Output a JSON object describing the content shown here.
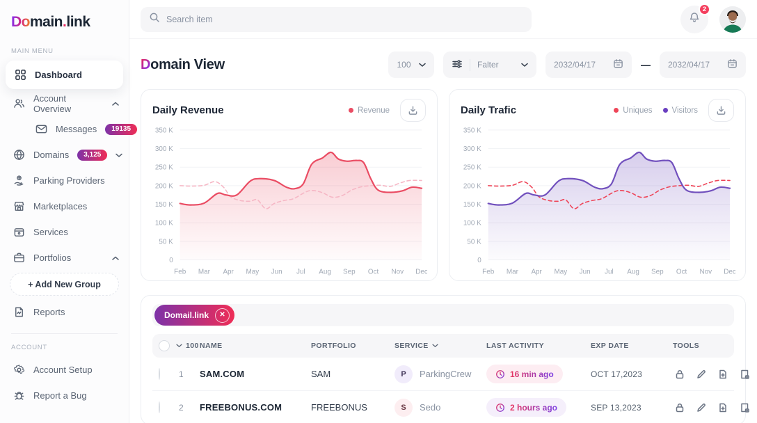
{
  "brand": {
    "logo_accent": "Do",
    "logo_part1": "main",
    "logo_dot": ".",
    "logo_part2": "link"
  },
  "topbar": {
    "search_placeholder": "Search item",
    "notification_count": "2"
  },
  "sidebar": {
    "section_main": "MAIN MENU",
    "section_account": "ACCOUNT",
    "items": {
      "dashboard": "Dashboard",
      "account_overview": "Account Overview",
      "messages": "Messages",
      "messages_badge": "19135",
      "domains": "Domains",
      "domains_badge": "3,125",
      "parking_providers": "Parking Providers",
      "marketplaces": "Marketplaces",
      "services": "Services",
      "portfolios": "Portfolios",
      "add_new_group": "+ Add New Group",
      "reports": "Reports",
      "account_setup": "Account Setup",
      "report_a_bug": "Report a Bug"
    }
  },
  "page": {
    "title_accent": "D",
    "title_rest": "omain View",
    "page_size": "100",
    "filter_label": "Falter",
    "date_from": "2032/04/17",
    "date_separator": "—",
    "date_to": "2032/04/17"
  },
  "chart_data": [
    {
      "type": "line",
      "title": "Daily Revenue",
      "x_ticks": [
        "Feb",
        "Mar",
        "Apr",
        "May",
        "Jun",
        "Jul",
        "Aug",
        "Sep",
        "Oct",
        "Nov",
        "Dec"
      ],
      "x_range": [
        0,
        10
      ],
      "ylim": [
        0,
        350
      ],
      "y_unit": "K",
      "grid": true,
      "legend_position": "top-right",
      "y_ticks": [
        {
          "label": "350 K",
          "value": 350
        },
        {
          "label": "300 K",
          "value": 300
        },
        {
          "label": "250 K",
          "value": 250
        },
        {
          "label": "200 K",
          "value": 200
        },
        {
          "label": "150 K",
          "value": 150
        },
        {
          "label": "100 K",
          "value": 100
        },
        {
          "label": "50 K",
          "value": 50
        },
        {
          "label": "0",
          "value": 0
        }
      ],
      "legend": [
        {
          "label": "Revenue",
          "color": "#ea4c63"
        }
      ],
      "series": [
        {
          "name": "",
          "style": "dashed",
          "color": "#f6b7c5",
          "fill": false,
          "points": [
            [
              0,
              200
            ],
            [
              0.5,
              199
            ],
            [
              1,
              201
            ],
            [
              1.45,
              211
            ],
            [
              1.8,
              196
            ],
            [
              2.1,
              170
            ],
            [
              2.5,
              160
            ],
            [
              2.9,
              158
            ],
            [
              3.2,
              162
            ],
            [
              3.55,
              138
            ],
            [
              3.9,
              152
            ],
            [
              4.3,
              160
            ],
            [
              4.7,
              165
            ],
            [
              5.2,
              183
            ],
            [
              5.5,
              187
            ],
            [
              5.9,
              181
            ],
            [
              6.3,
              169
            ],
            [
              6.7,
              173
            ],
            [
              7.1,
              188
            ],
            [
              7.5,
              197
            ],
            [
              7.9,
              200
            ],
            [
              8.3,
              201
            ],
            [
              8.7,
              198
            ],
            [
              9.1,
              207
            ],
            [
              9.5,
              214
            ],
            [
              10,
              214
            ]
          ]
        },
        {
          "name": "Revenue",
          "style": "solid",
          "color": "#ea4c63",
          "fill": true,
          "points": [
            [
              0,
              152
            ],
            [
              0.45,
              148
            ],
            [
              1,
              153
            ],
            [
              1.55,
              179
            ],
            [
              1.9,
              175
            ],
            [
              2.35,
              175
            ],
            [
              2.9,
              212
            ],
            [
              3.3,
              219
            ],
            [
              3.9,
              214
            ],
            [
              4.4,
              196
            ],
            [
              4.75,
              192
            ],
            [
              5.1,
              205
            ],
            [
              5.45,
              258
            ],
            [
              5.9,
              275
            ],
            [
              6.25,
              290
            ],
            [
              6.55,
              272
            ],
            [
              6.9,
              266
            ],
            [
              7.3,
              268
            ],
            [
              7.6,
              262
            ],
            [
              7.9,
              218
            ],
            [
              8.2,
              188
            ],
            [
              8.7,
              182
            ],
            [
              9.2,
              186
            ],
            [
              9.6,
              196
            ],
            [
              10,
              193
            ]
          ]
        }
      ]
    },
    {
      "type": "line",
      "title": "Daily Trafic",
      "x_ticks": [
        "Feb",
        "Mar",
        "Apr",
        "May",
        "Jun",
        "Jul",
        "Aug",
        "Sep",
        "Oct",
        "Nov",
        "Dec"
      ],
      "x_range": [
        0,
        10
      ],
      "ylim": [
        0,
        350
      ],
      "y_unit": "K",
      "grid": true,
      "legend_position": "top-right",
      "y_ticks": [
        {
          "label": "350 K",
          "value": 350
        },
        {
          "label": "300 K",
          "value": 300
        },
        {
          "label": "250 K",
          "value": 250
        },
        {
          "label": "200 K",
          "value": 200
        },
        {
          "label": "150 K",
          "value": 150
        },
        {
          "label": "100 K",
          "value": 100
        },
        {
          "label": "50 K",
          "value": 50
        },
        {
          "label": "0",
          "value": 0
        }
      ],
      "legend": [
        {
          "label": "Uniques",
          "color": "#ee4558"
        },
        {
          "label": "Visitors",
          "color": "#6a3fc0"
        }
      ],
      "series": [
        {
          "name": "Uniques",
          "style": "dashed",
          "color": "#ee4558",
          "fill": false,
          "points": [
            [
              0,
              200
            ],
            [
              0.5,
              199
            ],
            [
              1,
              201
            ],
            [
              1.45,
              211
            ],
            [
              1.8,
              196
            ],
            [
              2.1,
              170
            ],
            [
              2.5,
              160
            ],
            [
              2.9,
              158
            ],
            [
              3.2,
              162
            ],
            [
              3.55,
              138
            ],
            [
              3.9,
              152
            ],
            [
              4.3,
              160
            ],
            [
              4.7,
              165
            ],
            [
              5.2,
              183
            ],
            [
              5.5,
              187
            ],
            [
              5.9,
              181
            ],
            [
              6.3,
              169
            ],
            [
              6.7,
              173
            ],
            [
              7.1,
              188
            ],
            [
              7.5,
              197
            ],
            [
              7.9,
              200
            ],
            [
              8.3,
              201
            ],
            [
              8.7,
              198
            ],
            [
              9.1,
              207
            ],
            [
              9.5,
              214
            ],
            [
              10,
              214
            ]
          ]
        },
        {
          "name": "Visitors",
          "style": "solid",
          "color": "#7150bd",
          "fill": true,
          "points": [
            [
              0,
              152
            ],
            [
              0.45,
              148
            ],
            [
              1,
              153
            ],
            [
              1.55,
              179
            ],
            [
              1.9,
              175
            ],
            [
              2.35,
              175
            ],
            [
              2.9,
              212
            ],
            [
              3.3,
              219
            ],
            [
              3.9,
              214
            ],
            [
              4.4,
              196
            ],
            [
              4.75,
              192
            ],
            [
              5.1,
              205
            ],
            [
              5.45,
              258
            ],
            [
              5.9,
              275
            ],
            [
              6.25,
              290
            ],
            [
              6.55,
              272
            ],
            [
              6.9,
              266
            ],
            [
              7.3,
              268
            ],
            [
              7.6,
              262
            ],
            [
              7.9,
              218
            ],
            [
              8.2,
              188
            ],
            [
              8.7,
              182
            ],
            [
              9.2,
              186
            ],
            [
              9.6,
              196
            ],
            [
              10,
              193
            ]
          ]
        }
      ]
    }
  ],
  "table": {
    "filter_chip": "Domail.link",
    "header": {
      "count": "100",
      "name": "NAME",
      "portfolio": "PORTFOLIO",
      "service": "SERVICE",
      "last_activity": "LAST ACTIVITY",
      "exp_date": "EXP DATE",
      "tools": "TOOLS"
    },
    "rows": [
      {
        "index": "1",
        "name": "SAM.COM",
        "portfolio": "SAM",
        "service_initial": "P",
        "service": "ParkingCrew",
        "last_activity": "16 min ago",
        "exp_date": "OCT 17,2023"
      },
      {
        "index": "2",
        "name": "FREEBONUS.COM",
        "portfolio": "FREEBONUS",
        "service_initial": "S",
        "service": "Sedo",
        "last_activity": "2 hours ago",
        "exp_date": "SEP 13,2023"
      }
    ]
  },
  "colors": {
    "accent_gradient_start": "#7d32a8",
    "accent_gradient_end": "#ef2d56",
    "revenue_line": "#ea4c63",
    "uniques_line": "#ee4558",
    "visitors_line": "#7150bd",
    "notification_badge": "#f43f5e"
  }
}
